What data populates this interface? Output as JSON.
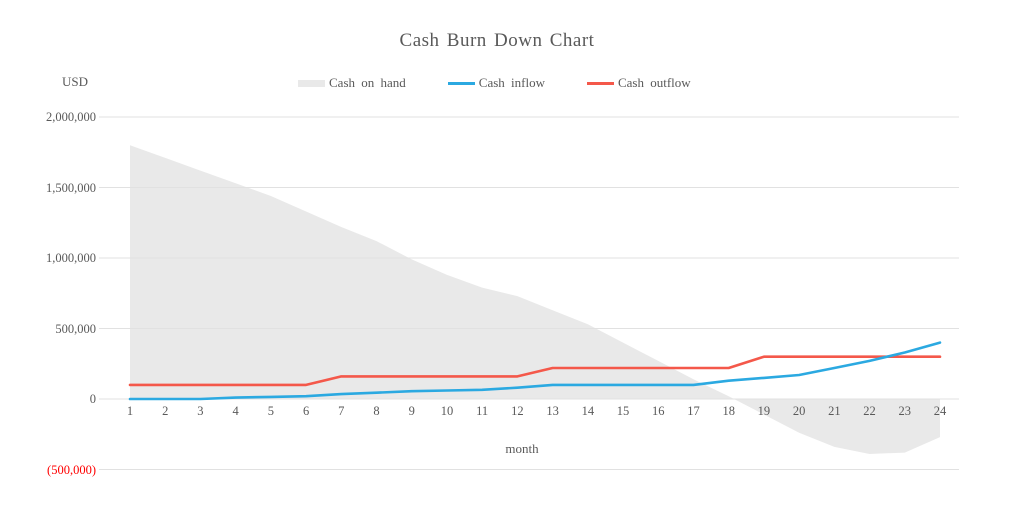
{
  "chart_data": {
    "type": "area",
    "title": "Cash Burn Down Chart",
    "y_axis_unit": "USD",
    "xlabel": "month",
    "x": [
      1,
      2,
      3,
      4,
      5,
      6,
      7,
      8,
      9,
      10,
      11,
      12,
      13,
      14,
      15,
      16,
      17,
      18,
      19,
      20,
      21,
      22,
      23,
      24
    ],
    "series": [
      {
        "name": "Cash on hand",
        "type": "area",
        "color": "#e9e9e9",
        "values": [
          1800000,
          1710000,
          1620000,
          1530000,
          1440000,
          1330000,
          1220000,
          1120000,
          990000,
          880000,
          790000,
          730000,
          630000,
          530000,
          400000,
          270000,
          140000,
          20000,
          -110000,
          -240000,
          -340000,
          -390000,
          -380000,
          -270000
        ]
      },
      {
        "name": "Cash inflow",
        "type": "line",
        "color": "#2ba9e1",
        "values": [
          0,
          0,
          0,
          10000,
          15000,
          20000,
          35000,
          45000,
          55000,
          60000,
          65000,
          80000,
          100000,
          100000,
          100000,
          100000,
          100000,
          130000,
          150000,
          170000,
          220000,
          270000,
          330000,
          400000
        ]
      },
      {
        "name": "Cash outflow",
        "type": "line",
        "color": "#f4584a",
        "values": [
          100000,
          100000,
          100000,
          100000,
          100000,
          100000,
          160000,
          160000,
          160000,
          160000,
          160000,
          160000,
          220000,
          220000,
          220000,
          220000,
          220000,
          220000,
          300000,
          300000,
          300000,
          300000,
          300000,
          300000
        ]
      }
    ],
    "ylim": [
      -500000,
      2000000
    ],
    "yticks": [
      {
        "value": 2000000,
        "label": "2,000,000",
        "color": "#595959"
      },
      {
        "value": 1500000,
        "label": "1,500,000",
        "color": "#595959"
      },
      {
        "value": 1000000,
        "label": "1,000,000",
        "color": "#595959"
      },
      {
        "value": 500000,
        "label": "500,000",
        "color": "#595959"
      },
      {
        "value": 0,
        "label": "0",
        "color": "#595959"
      },
      {
        "value": -500000,
        "label": "(500,000)",
        "color": "#ff0000"
      }
    ],
    "grid": true,
    "gridline_color": "#e1e1e1",
    "legend_position": "top",
    "text_color": "#595959"
  }
}
